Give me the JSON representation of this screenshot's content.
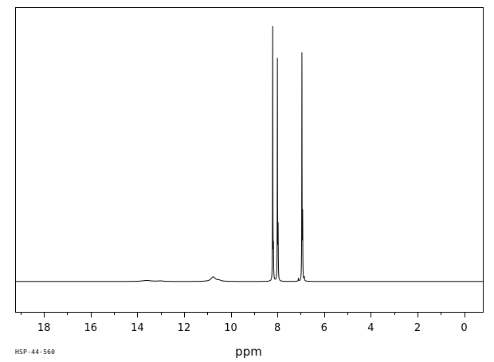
{
  "chart_data": {
    "type": "line",
    "title": "",
    "xlabel": "ppm",
    "ylabel": "",
    "xlim": [
      19.2,
      -0.8
    ],
    "x_reversed": true,
    "ylim": [
      -0.12,
      1.08
    ],
    "grid": false,
    "tick_values": [
      18,
      16,
      14,
      12,
      10,
      8,
      6,
      4,
      2,
      0
    ],
    "tick_labels": [
      "18",
      "16",
      "14",
      "12",
      "10",
      "8",
      "6",
      "4",
      "2",
      "0"
    ],
    "series": [
      {
        "peaks": [
          {
            "ppm": 13.6,
            "height": 0.004,
            "width": 0.45
          },
          {
            "ppm": 13.0,
            "height": 0.002,
            "width": 0.25
          },
          {
            "ppm": 10.75,
            "height": 0.018,
            "width": 0.22
          },
          {
            "ppm": 10.5,
            "height": 0.004,
            "width": 0.2
          },
          {
            "ppm": 8.2,
            "height": 1.0,
            "width": 0.012
          },
          {
            "ppm": 8.17,
            "height": 0.12,
            "width": 0.015
          },
          {
            "ppm": 8.0,
            "height": 0.87,
            "width": 0.012
          },
          {
            "ppm": 7.97,
            "height": 0.2,
            "width": 0.015
          },
          {
            "ppm": 7.1,
            "height": 0.01,
            "width": 0.02
          },
          {
            "ppm": 6.95,
            "height": 0.89,
            "width": 0.012
          },
          {
            "ppm": 6.92,
            "height": 0.25,
            "width": 0.015
          },
          {
            "ppm": 6.85,
            "height": 0.015,
            "width": 0.02
          }
        ]
      }
    ]
  },
  "footer": {
    "code": "HSP-44-560"
  }
}
